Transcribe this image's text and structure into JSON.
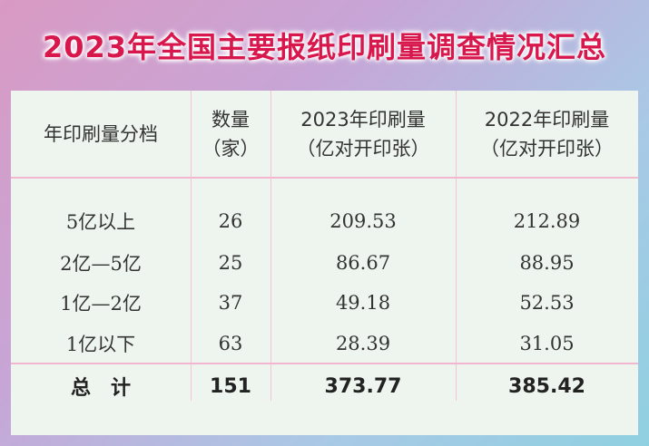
{
  "title": "2023年全国主要报纸印刷量调查情况汇总",
  "table": {
    "headers": [
      {
        "line1": "年印刷量分档",
        "line2": ""
      },
      {
        "line1": "数量",
        "line2": "（家）"
      },
      {
        "line1": "2023年印刷量",
        "line2": "（亿对开印张）"
      },
      {
        "line1": "2022年印刷量",
        "line2": "（亿对开印张）"
      }
    ],
    "rows": [
      [
        "5亿以上",
        "26",
        "209.53",
        "212.89"
      ],
      [
        "2亿—5亿",
        "25",
        "86.67",
        "88.95"
      ],
      [
        "1亿—2亿",
        "37",
        "49.18",
        "52.53"
      ],
      [
        "1亿以下",
        "63",
        "28.39",
        "31.05"
      ]
    ],
    "total": [
      "总　计",
      "151",
      "373.77",
      "385.42"
    ]
  }
}
